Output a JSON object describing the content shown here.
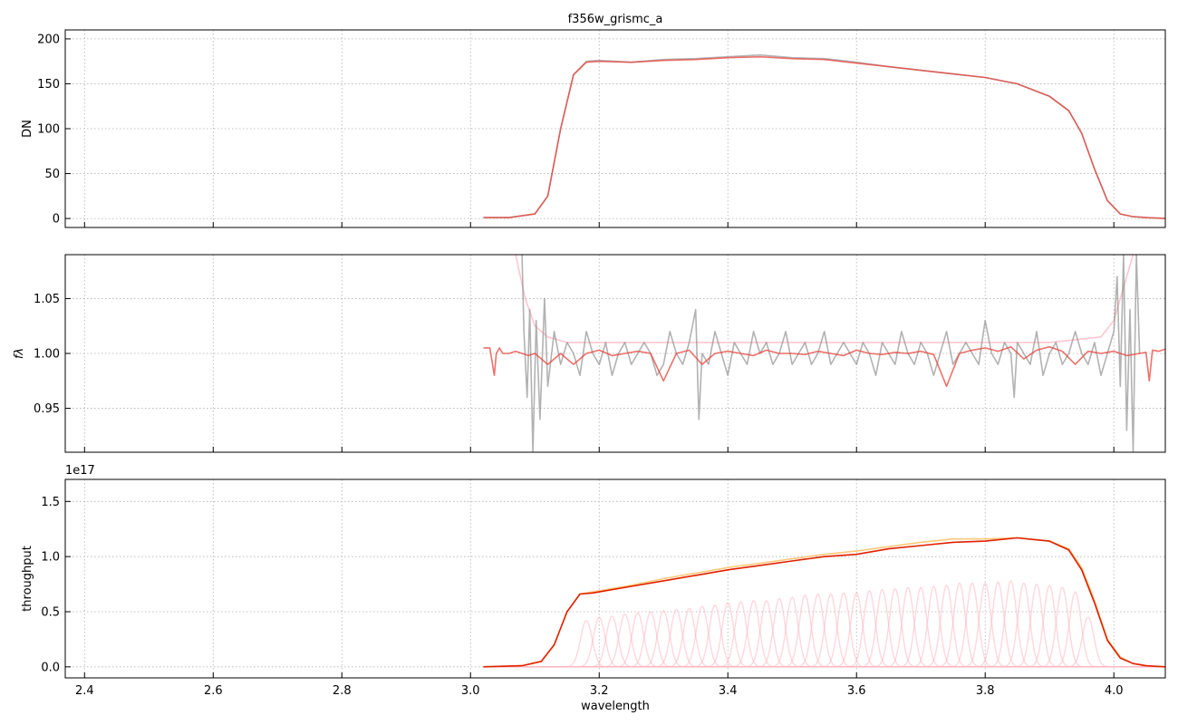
{
  "chart_data": [
    {
      "type": "line",
      "title": "f356w_grismc_a",
      "xlabel": "",
      "ylabel": "DN",
      "xlim": [
        2.37,
        4.08
      ],
      "ylim": [
        -10,
        210
      ],
      "xticks": [
        2.4,
        2.6,
        2.8,
        3.0,
        3.2,
        3.4,
        3.6,
        3.8,
        4.0
      ],
      "xticklabels": [],
      "yticks": [
        0,
        50,
        100,
        150,
        200
      ],
      "yticklabels": [
        "0",
        "50",
        "100",
        "150",
        "200"
      ],
      "grid": true,
      "series": [
        {
          "color": "#888888",
          "opacity": 0.65,
          "x": [
            3.02,
            3.06,
            3.1,
            3.12,
            3.14,
            3.16,
            3.18,
            3.2,
            3.25,
            3.3,
            3.35,
            3.4,
            3.45,
            3.5,
            3.55,
            3.6,
            3.65,
            3.7,
            3.75,
            3.8,
            3.85,
            3.9,
            3.93,
            3.95,
            3.97,
            3.99,
            4.01,
            4.03,
            4.05,
            4.08
          ],
          "y": [
            1,
            1,
            5,
            25,
            100,
            160,
            175,
            176,
            174,
            177,
            178,
            180,
            182,
            179,
            178,
            174,
            169,
            165,
            161,
            157,
            150,
            136,
            120,
            95,
            55,
            20,
            5,
            2,
            1,
            0
          ]
        },
        {
          "color": "#e8413a",
          "opacity": 0.75,
          "x": [
            3.02,
            3.06,
            3.1,
            3.12,
            3.14,
            3.16,
            3.18,
            3.2,
            3.25,
            3.3,
            3.35,
            3.4,
            3.45,
            3.5,
            3.55,
            3.6,
            3.65,
            3.7,
            3.75,
            3.8,
            3.85,
            3.9,
            3.93,
            3.95,
            3.97,
            3.99,
            4.01,
            4.03,
            4.05,
            4.08
          ],
          "y": [
            1,
            1,
            5,
            25,
            100,
            160,
            174,
            175,
            174,
            176,
            177,
            179,
            180,
            178,
            177,
            173,
            169,
            165,
            161,
            157,
            150,
            136,
            120,
            95,
            55,
            20,
            5,
            2,
            1,
            0
          ]
        }
      ]
    },
    {
      "type": "line",
      "title": "",
      "xlabel": "",
      "ylabel": "fλ",
      "xlim": [
        2.37,
        4.08
      ],
      "ylim": [
        0.91,
        1.09
      ],
      "xticks": [
        2.4,
        2.6,
        2.8,
        3.0,
        3.2,
        3.4,
        3.6,
        3.8,
        4.0
      ],
      "xticklabels": [],
      "yticks": [
        0.95,
        1.0,
        1.05
      ],
      "yticklabels": [
        "0.95",
        "1.00",
        "1.05"
      ],
      "grid": true,
      "series": [
        {
          "color": "#ffc0cb",
          "opacity": 0.9,
          "x": [
            3.07,
            3.085,
            3.1,
            3.12,
            3.15,
            3.2,
            3.6,
            3.9,
            3.98,
            4.0,
            4.015,
            4.03
          ],
          "y": [
            1.09,
            1.05,
            1.025,
            1.015,
            1.01,
            1.01,
            1.01,
            1.01,
            1.015,
            1.03,
            1.06,
            1.09
          ]
        },
        {
          "color": "#888888",
          "opacity": 0.65,
          "x": [
            3.08,
            3.083,
            3.088,
            3.092,
            3.097,
            3.102,
            3.108,
            3.115,
            3.12,
            3.13,
            3.14,
            3.15,
            3.16,
            3.17,
            3.18,
            3.19,
            3.2,
            3.21,
            3.22,
            3.23,
            3.24,
            3.25,
            3.26,
            3.27,
            3.28,
            3.29,
            3.3,
            3.31,
            3.32,
            3.33,
            3.34,
            3.35,
            3.355,
            3.36,
            3.37,
            3.38,
            3.39,
            3.4,
            3.41,
            3.42,
            3.43,
            3.44,
            3.45,
            3.46,
            3.47,
            3.48,
            3.49,
            3.5,
            3.51,
            3.52,
            3.53,
            3.54,
            3.55,
            3.56,
            3.57,
            3.58,
            3.59,
            3.6,
            3.61,
            3.62,
            3.63,
            3.64,
            3.65,
            3.66,
            3.67,
            3.68,
            3.69,
            3.7,
            3.71,
            3.72,
            3.73,
            3.74,
            3.75,
            3.76,
            3.77,
            3.78,
            3.79,
            3.8,
            3.81,
            3.82,
            3.83,
            3.84,
            3.845,
            3.85,
            3.86,
            3.87,
            3.88,
            3.89,
            3.9,
            3.91,
            3.92,
            3.93,
            3.94,
            3.95,
            3.96,
            3.97,
            3.98,
            3.99,
            4.0,
            4.005,
            4.01,
            4.015,
            4.02,
            4.025,
            4.03,
            4.035,
            4.04
          ],
          "y": [
            1.09,
            1.02,
            0.96,
            1.04,
            0.91,
            1.03,
            0.94,
            1.05,
            0.97,
            1.02,
            0.99,
            1.01,
            1.0,
            0.98,
            1.02,
            1.0,
            0.99,
            1.01,
            0.98,
            1.0,
            1.01,
            0.99,
            1.0,
            1.01,
            1.0,
            0.98,
            0.99,
            1.02,
            1.0,
            0.99,
            1.01,
            1.04,
            0.94,
            1.0,
            0.99,
            1.02,
            1.0,
            0.98,
            1.01,
            1.0,
            0.99,
            1.02,
            1.0,
            1.01,
            0.99,
            1.0,
            1.02,
            0.99,
            1.0,
            1.01,
            0.99,
            1.0,
            1.02,
            0.99,
            1.0,
            1.01,
            1.0,
            0.99,
            1.01,
            1.0,
            0.98,
            1.01,
            1.0,
            0.99,
            1.02,
            1.0,
            0.99,
            1.01,
            1.0,
            0.98,
            1.0,
            1.02,
            0.99,
            1.0,
            1.01,
            1.0,
            0.99,
            1.03,
            1.0,
            0.99,
            1.01,
            1.0,
            0.96,
            1.01,
            1.0,
            0.99,
            1.02,
            0.98,
            1.0,
            1.01,
            0.99,
            1.0,
            1.02,
            1.0,
            0.99,
            1.01,
            0.98,
            1.0,
            1.02,
            1.07,
            0.97,
            1.09,
            0.93,
            1.04,
            0.91,
            1.09,
            1.0
          ]
        },
        {
          "color": "#e8413a",
          "opacity": 0.75,
          "x": [
            3.02,
            3.03,
            3.037,
            3.04,
            3.045,
            3.05,
            3.06,
            3.07,
            3.08,
            3.09,
            3.1,
            3.12,
            3.14,
            3.16,
            3.18,
            3.2,
            3.22,
            3.24,
            3.26,
            3.28,
            3.3,
            3.32,
            3.34,
            3.36,
            3.38,
            3.4,
            3.42,
            3.44,
            3.46,
            3.48,
            3.5,
            3.52,
            3.54,
            3.56,
            3.58,
            3.6,
            3.62,
            3.64,
            3.66,
            3.68,
            3.7,
            3.72,
            3.74,
            3.76,
            3.78,
            3.8,
            3.82,
            3.84,
            3.86,
            3.88,
            3.9,
            3.92,
            3.94,
            3.96,
            3.98,
            4.0,
            4.02,
            4.04,
            4.05,
            4.055,
            4.06,
            4.07,
            4.08
          ],
          "y": [
            1.005,
            1.005,
            0.98,
            1.0,
            1.005,
            1.0,
            1.0,
            1.002,
            1.0,
            0.998,
            1.0,
            0.99,
            1.0,
            0.99,
            1.0,
            1.003,
            0.998,
            1.0,
            1.002,
            1.0,
            0.975,
            1.0,
            1.003,
            0.99,
            1.0,
            1.002,
            1.0,
            0.998,
            1.003,
            1.0,
            1.0,
            0.999,
            1.002,
            1.0,
            0.998,
            1.003,
            1.0,
            0.999,
            1.001,
            1.0,
            1.002,
            0.999,
            0.97,
            1.0,
            1.003,
            1.005,
            1.002,
            1.006,
            0.995,
            1.003,
            1.006,
            1.002,
            0.99,
            1.002,
            1.0,
            1.002,
            0.998,
            1.0,
            1.001,
            0.975,
            1.003,
            1.002,
            1.004
          ]
        }
      ]
    },
    {
      "type": "line",
      "title": "",
      "xlabel": "wavelength",
      "ylabel": "throughput",
      "offset_text": "1e17",
      "xlim": [
        2.37,
        4.08
      ],
      "ylim": [
        -0.1,
        1.7
      ],
      "xticks": [
        2.4,
        2.6,
        2.8,
        3.0,
        3.2,
        3.4,
        3.6,
        3.8,
        4.0
      ],
      "xticklabels": [
        "2.4",
        "2.6",
        "2.8",
        "3.0",
        "3.2",
        "3.4",
        "3.6",
        "3.8",
        "4.0"
      ],
      "yticks": [
        0.0,
        0.5,
        1.0,
        1.5
      ],
      "yticklabels": [
        "0.0",
        "0.5",
        "1.0",
        "1.5"
      ],
      "grid": true,
      "components": {
        "color": "#ffb6c1",
        "sigma": 0.009,
        "centers": [
          3.18,
          3.2,
          3.22,
          3.24,
          3.26,
          3.28,
          3.3,
          3.32,
          3.34,
          3.36,
          3.38,
          3.4,
          3.42,
          3.44,
          3.46,
          3.48,
          3.5,
          3.52,
          3.54,
          3.56,
          3.58,
          3.6,
          3.62,
          3.64,
          3.66,
          3.68,
          3.7,
          3.72,
          3.74,
          3.76,
          3.78,
          3.8,
          3.82,
          3.84,
          3.86,
          3.88,
          3.9,
          3.92,
          3.94,
          3.96
        ],
        "heights": [
          0.42,
          0.45,
          0.46,
          0.48,
          0.49,
          0.5,
          0.51,
          0.52,
          0.53,
          0.55,
          0.56,
          0.58,
          0.59,
          0.6,
          0.6,
          0.62,
          0.63,
          0.65,
          0.66,
          0.66,
          0.67,
          0.67,
          0.69,
          0.7,
          0.71,
          0.72,
          0.72,
          0.73,
          0.74,
          0.76,
          0.76,
          0.76,
          0.77,
          0.78,
          0.76,
          0.75,
          0.74,
          0.72,
          0.68,
          0.45
        ]
      },
      "series": [
        {
          "color": "#ffc87a",
          "opacity": 1.0,
          "x": [
            3.02,
            3.08,
            3.11,
            3.13,
            3.15,
            3.17,
            3.19,
            3.2,
            3.25,
            3.3,
            3.35,
            3.4,
            3.45,
            3.5,
            3.55,
            3.6,
            3.65,
            3.7,
            3.75,
            3.8,
            3.85,
            3.9,
            3.93,
            3.95,
            3.97,
            3.99,
            4.01,
            4.03,
            4.05,
            4.08
          ],
          "y": [
            0.0,
            0.01,
            0.05,
            0.2,
            0.5,
            0.66,
            0.68,
            0.69,
            0.74,
            0.8,
            0.85,
            0.9,
            0.94,
            0.98,
            1.02,
            1.05,
            1.09,
            1.13,
            1.16,
            1.16,
            1.17,
            1.14,
            1.07,
            0.9,
            0.6,
            0.25,
            0.09,
            0.03,
            0.01,
            0.0
          ]
        },
        {
          "color": "#e02000",
          "opacity": 1.0,
          "x": [
            3.02,
            3.08,
            3.11,
            3.13,
            3.15,
            3.17,
            3.19,
            3.2,
            3.25,
            3.3,
            3.35,
            3.4,
            3.45,
            3.5,
            3.55,
            3.6,
            3.65,
            3.7,
            3.75,
            3.8,
            3.85,
            3.9,
            3.93,
            3.95,
            3.97,
            3.99,
            4.01,
            4.03,
            4.05,
            4.08
          ],
          "y": [
            0.0,
            0.01,
            0.05,
            0.2,
            0.5,
            0.66,
            0.67,
            0.68,
            0.73,
            0.78,
            0.83,
            0.88,
            0.92,
            0.96,
            1.0,
            1.02,
            1.07,
            1.1,
            1.13,
            1.14,
            1.17,
            1.14,
            1.06,
            0.88,
            0.58,
            0.24,
            0.08,
            0.03,
            0.01,
            0.0
          ]
        }
      ]
    }
  ]
}
